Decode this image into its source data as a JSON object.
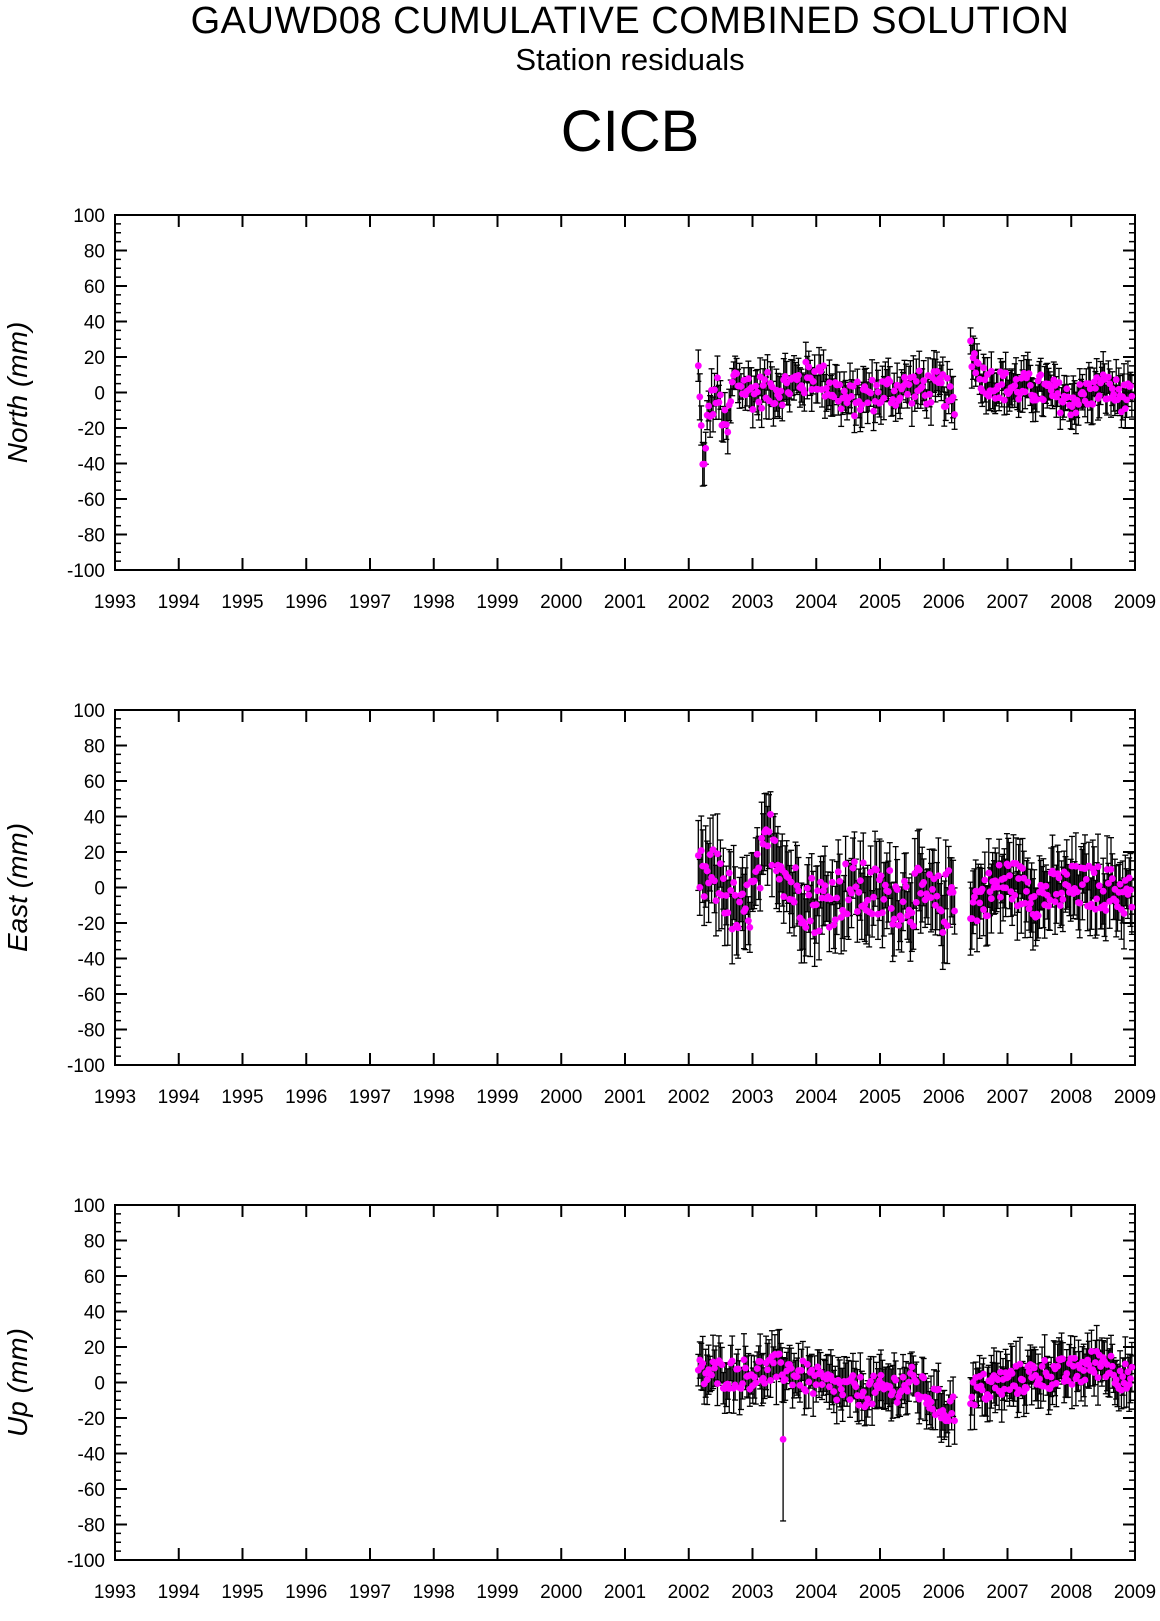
{
  "header": {
    "title": "GAUWD08 CUMULATIVE COMBINED SOLUTION",
    "subtitle": "Station residuals",
    "station": "CICB"
  },
  "style": {
    "marker_color": "#ff00ff",
    "error_bar_color": "#000000",
    "axis_color": "#000000"
  },
  "chart_data": [
    {
      "type": "scatter",
      "name": "north",
      "ylabel": "North (mm)",
      "xlim": [
        1993,
        2009
      ],
      "ylim": [
        -100,
        100
      ],
      "xticks": [
        "1993",
        "1994",
        "1995",
        "1996",
        "1997",
        "1998",
        "1999",
        "2000",
        "2001",
        "2002",
        "2003",
        "2004",
        "2005",
        "2006",
        "2007",
        "2008",
        "2009"
      ],
      "yticks": [
        "100",
        "80",
        "60",
        "40",
        "20",
        "0",
        "-20",
        "-40",
        "-60",
        "-80",
        "-100"
      ],
      "segments": [
        {
          "x_start": 2002.15,
          "x_end": 2006.17,
          "points": 175,
          "shape": [
            [
              2002.15,
              12
            ],
            [
              2002.2,
              -25
            ],
            [
              2002.25,
              -48
            ],
            [
              2002.3,
              -10
            ],
            [
              2002.45,
              0
            ],
            [
              2002.6,
              -25
            ],
            [
              2002.7,
              8
            ],
            [
              2003.0,
              0
            ],
            [
              2003.5,
              3
            ],
            [
              2004.0,
              10
            ],
            [
              2004.5,
              -5
            ],
            [
              2005.0,
              0
            ],
            [
              2005.5,
              3
            ],
            [
              2006.0,
              2
            ],
            [
              2006.17,
              -10
            ]
          ],
          "amplitude": 10,
          "error_half_width": 10
        },
        {
          "x_start": 2006.42,
          "x_end": 2008.95,
          "points": 125,
          "shape": [
            [
              2006.42,
              25
            ],
            [
              2006.6,
              8
            ],
            [
              2007.0,
              3
            ],
            [
              2007.5,
              2
            ],
            [
              2008.0,
              -5
            ],
            [
              2008.5,
              3
            ],
            [
              2008.95,
              -5
            ]
          ],
          "amplitude": 9,
          "error_half_width": 10
        }
      ]
    },
    {
      "type": "scatter",
      "name": "east",
      "ylabel": "East (mm)",
      "xlim": [
        1993,
        2009
      ],
      "ylim": [
        -100,
        100
      ],
      "xticks": [
        "1993",
        "1994",
        "1995",
        "1996",
        "1997",
        "1998",
        "1999",
        "2000",
        "2001",
        "2002",
        "2003",
        "2004",
        "2005",
        "2006",
        "2007",
        "2008",
        "2009"
      ],
      "yticks": [
        "100",
        "80",
        "60",
        "40",
        "20",
        "0",
        "-20",
        "-40",
        "-60",
        "-80",
        "-100"
      ],
      "segments": [
        {
          "x_start": 2002.15,
          "x_end": 2006.17,
          "points": 175,
          "shape": [
            [
              2002.15,
              5
            ],
            [
              2002.5,
              5
            ],
            [
              2002.8,
              -20
            ],
            [
              2003.0,
              -5
            ],
            [
              2003.3,
              30
            ],
            [
              2003.6,
              0
            ],
            [
              2004.0,
              -10
            ],
            [
              2004.5,
              0
            ],
            [
              2005.0,
              -5
            ],
            [
              2005.5,
              -5
            ],
            [
              2006.0,
              -10
            ],
            [
              2006.17,
              0
            ]
          ],
          "amplitude": 17,
          "error_half_width": 18
        },
        {
          "x_start": 2006.42,
          "x_end": 2008.95,
          "points": 125,
          "shape": [
            [
              2006.42,
              -10
            ],
            [
              2007.0,
              5
            ],
            [
              2007.5,
              -5
            ],
            [
              2008.0,
              0
            ],
            [
              2008.5,
              0
            ],
            [
              2008.95,
              -5
            ]
          ],
          "amplitude": 13,
          "error_half_width": 16
        }
      ]
    },
    {
      "type": "scatter",
      "name": "up",
      "ylabel": "Up (mm)",
      "xlim": [
        1993,
        2009
      ],
      "ylim": [
        -100,
        100
      ],
      "xticks": [
        "1993",
        "1994",
        "1995",
        "1996",
        "1997",
        "1998",
        "1999",
        "2000",
        "2001",
        "2002",
        "2003",
        "2004",
        "2005",
        "2006",
        "2007",
        "2008",
        "2009"
      ],
      "yticks": [
        "100",
        "80",
        "60",
        "40",
        "20",
        "0",
        "-20",
        "-40",
        "-60",
        "-80",
        "-100"
      ],
      "segments": [
        {
          "x_start": 2002.15,
          "x_end": 2006.17,
          "points": 175,
          "shape": [
            [
              2002.15,
              5
            ],
            [
              2002.5,
              5
            ],
            [
              2003.0,
              5
            ],
            [
              2003.5,
              8
            ],
            [
              2004.0,
              0
            ],
            [
              2004.5,
              -5
            ],
            [
              2005.0,
              -5
            ],
            [
              2005.5,
              0
            ],
            [
              2006.0,
              -15
            ],
            [
              2006.17,
              -15
            ]
          ],
          "amplitude": 9,
          "error_half_width": 12
        },
        {
          "x_start": 2006.42,
          "x_end": 2008.95,
          "points": 125,
          "shape": [
            [
              2006.42,
              -5
            ],
            [
              2007.0,
              0
            ],
            [
              2007.5,
              5
            ],
            [
              2008.0,
              5
            ],
            [
              2008.5,
              12
            ],
            [
              2008.95,
              0
            ]
          ],
          "amplitude": 9,
          "error_half_width": 12
        }
      ],
      "outliers": [
        {
          "x": 2003.48,
          "y": -32,
          "err": 46
        }
      ]
    }
  ]
}
